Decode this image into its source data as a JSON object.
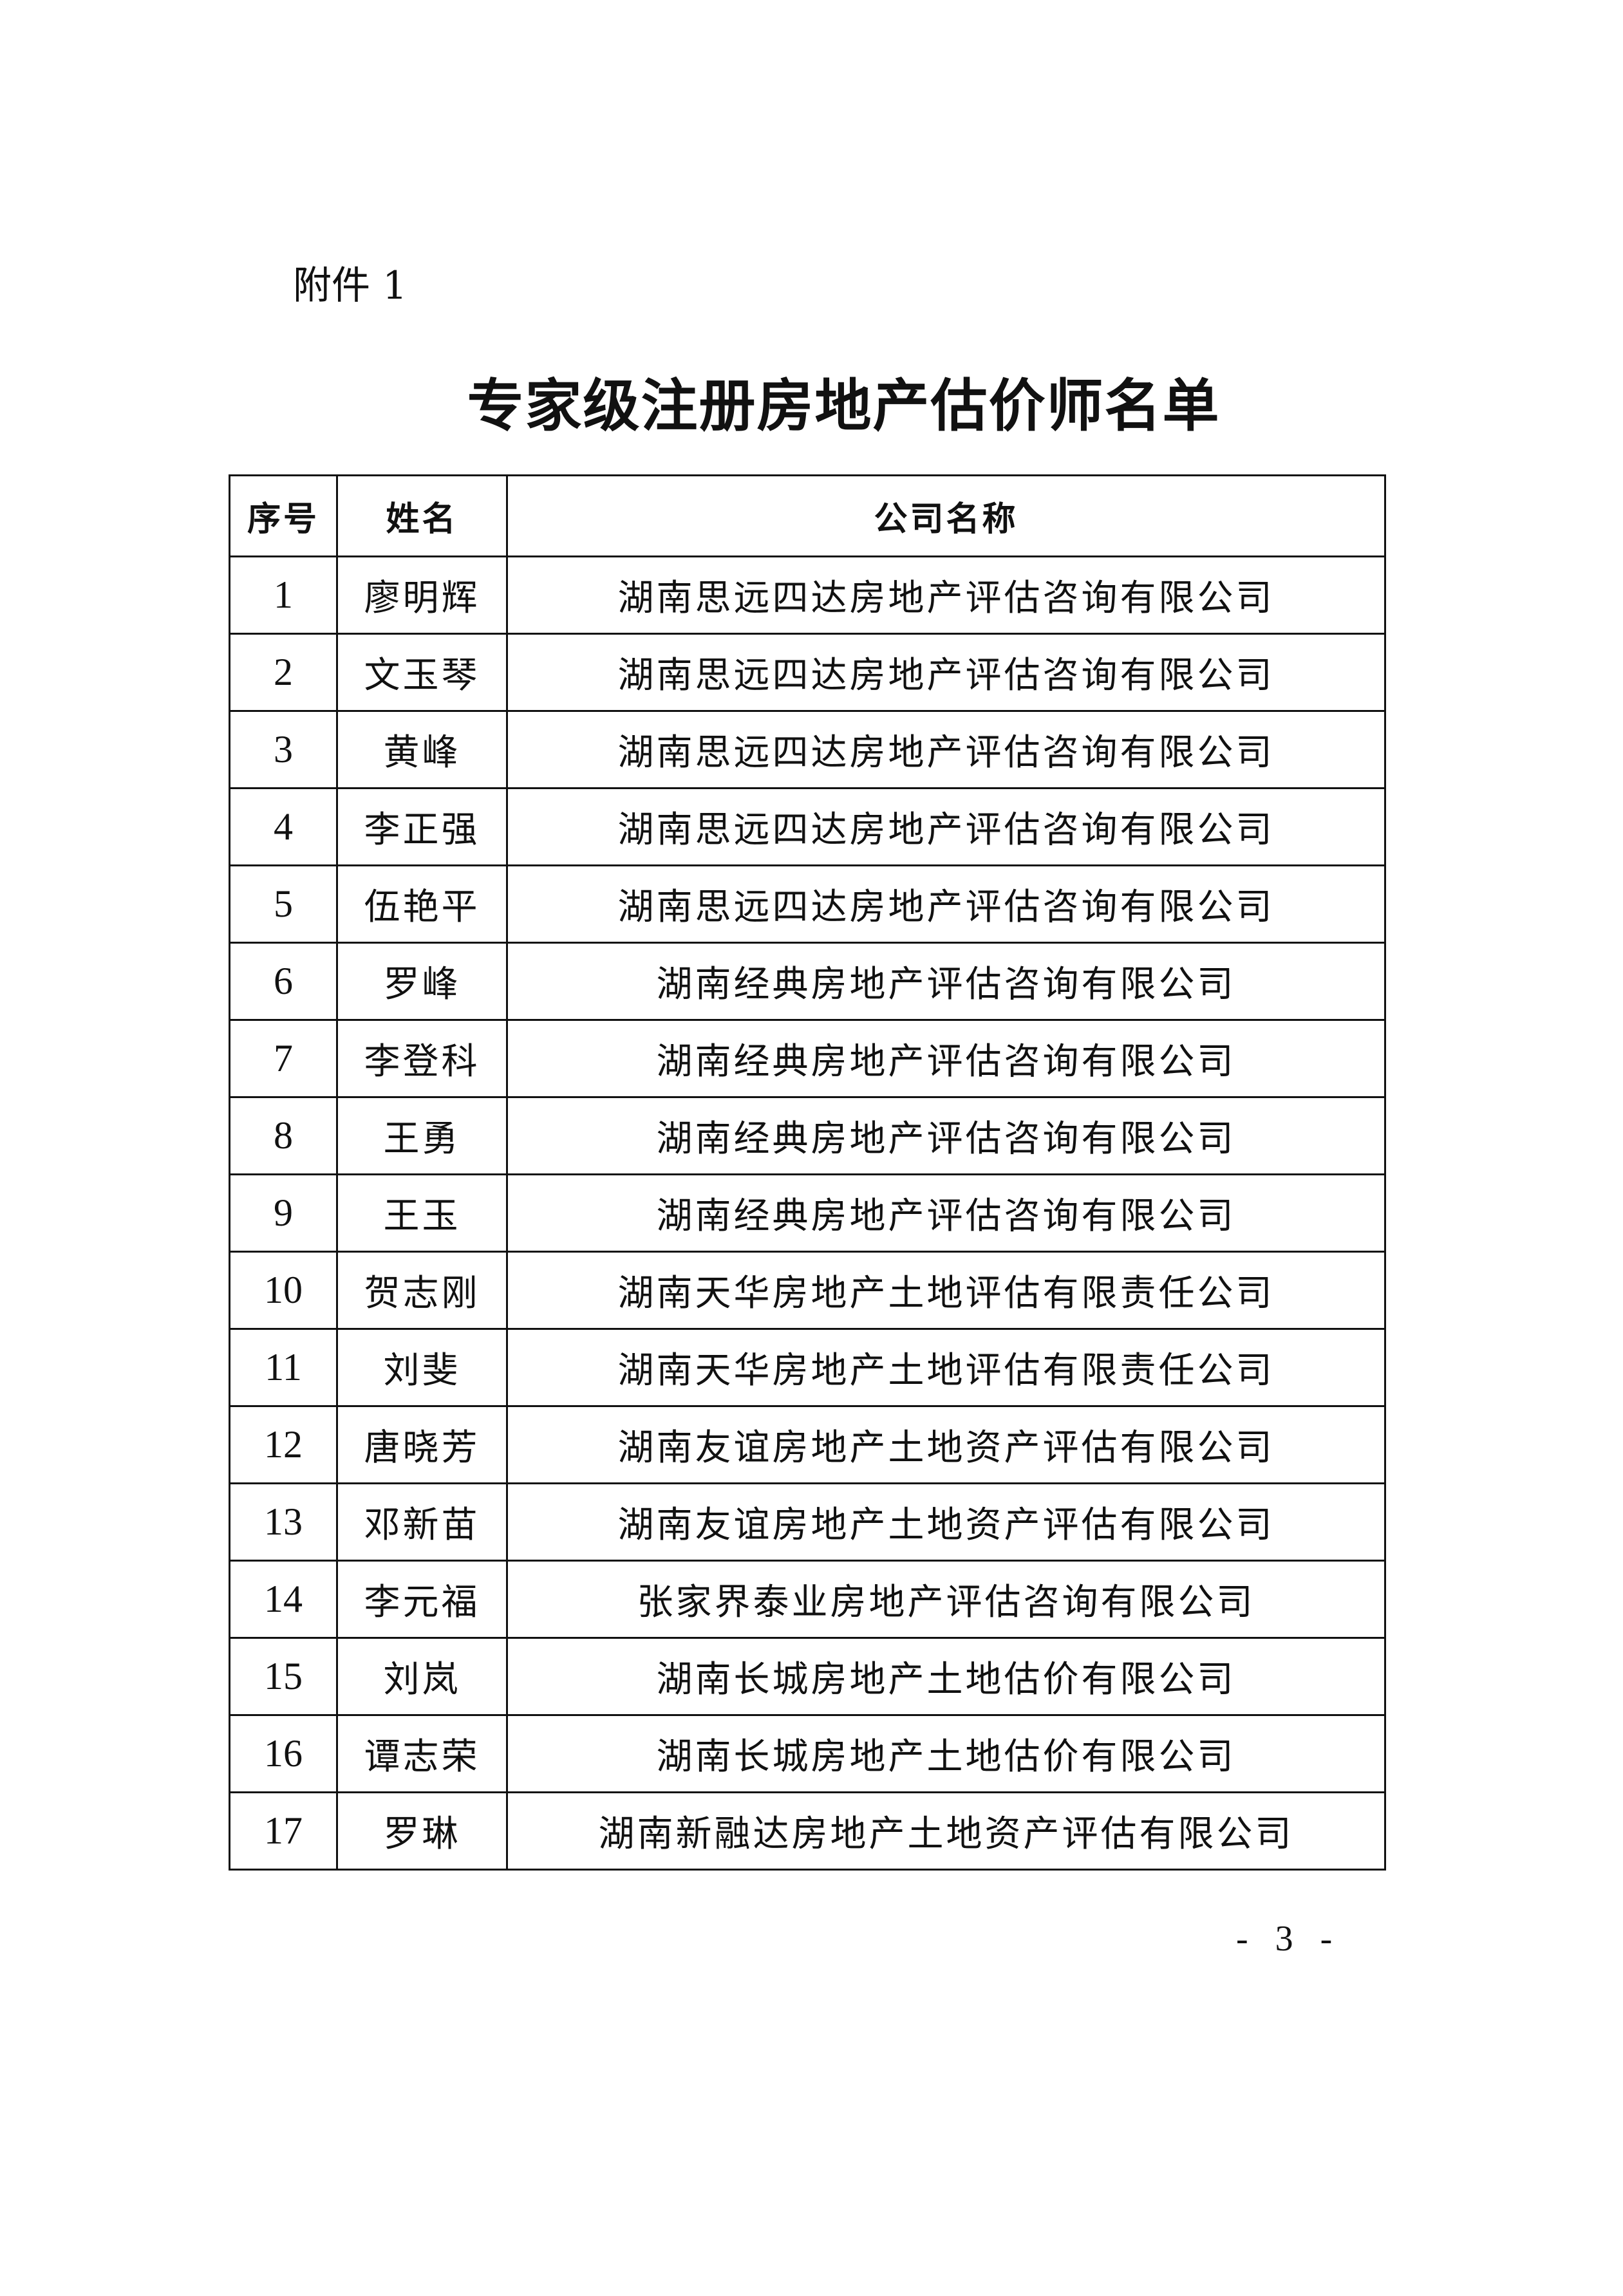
{
  "attachment_label": "附件 1",
  "title": "专家级注册房地产估价师名单",
  "table": {
    "headers": [
      "序号",
      "姓名",
      "公司名称"
    ],
    "rows": [
      [
        "1",
        "廖明辉",
        "湖南思远四达房地产评估咨询有限公司"
      ],
      [
        "2",
        "文玉琴",
        "湖南思远四达房地产评估咨询有限公司"
      ],
      [
        "3",
        "黄峰",
        "湖南思远四达房地产评估咨询有限公司"
      ],
      [
        "4",
        "李正强",
        "湖南思远四达房地产评估咨询有限公司"
      ],
      [
        "5",
        "伍艳平",
        "湖南思远四达房地产评估咨询有限公司"
      ],
      [
        "6",
        "罗峰",
        "湖南经典房地产评估咨询有限公司"
      ],
      [
        "7",
        "李登科",
        "湖南经典房地产评估咨询有限公司"
      ],
      [
        "8",
        "王勇",
        "湖南经典房地产评估咨询有限公司"
      ],
      [
        "9",
        "王玉",
        "湖南经典房地产评估咨询有限公司"
      ],
      [
        "10",
        "贺志刚",
        "湖南天华房地产土地评估有限责任公司"
      ],
      [
        "11",
        "刘斐",
        "湖南天华房地产土地评估有限责任公司"
      ],
      [
        "12",
        "唐晓芳",
        "湖南友谊房地产土地资产评估有限公司"
      ],
      [
        "13",
        "邓新苗",
        "湖南友谊房地产土地资产评估有限公司"
      ],
      [
        "14",
        "李元福",
        "张家界泰业房地产评估咨询有限公司"
      ],
      [
        "15",
        "刘岚",
        "湖南长城房地产土地估价有限公司"
      ],
      [
        "16",
        "谭志荣",
        "湖南长城房地产土地估价有限公司"
      ],
      [
        "17",
        "罗琳",
        "湖南新融达房地产土地资产评估有限公司"
      ]
    ]
  },
  "page_number": "- 3 -"
}
